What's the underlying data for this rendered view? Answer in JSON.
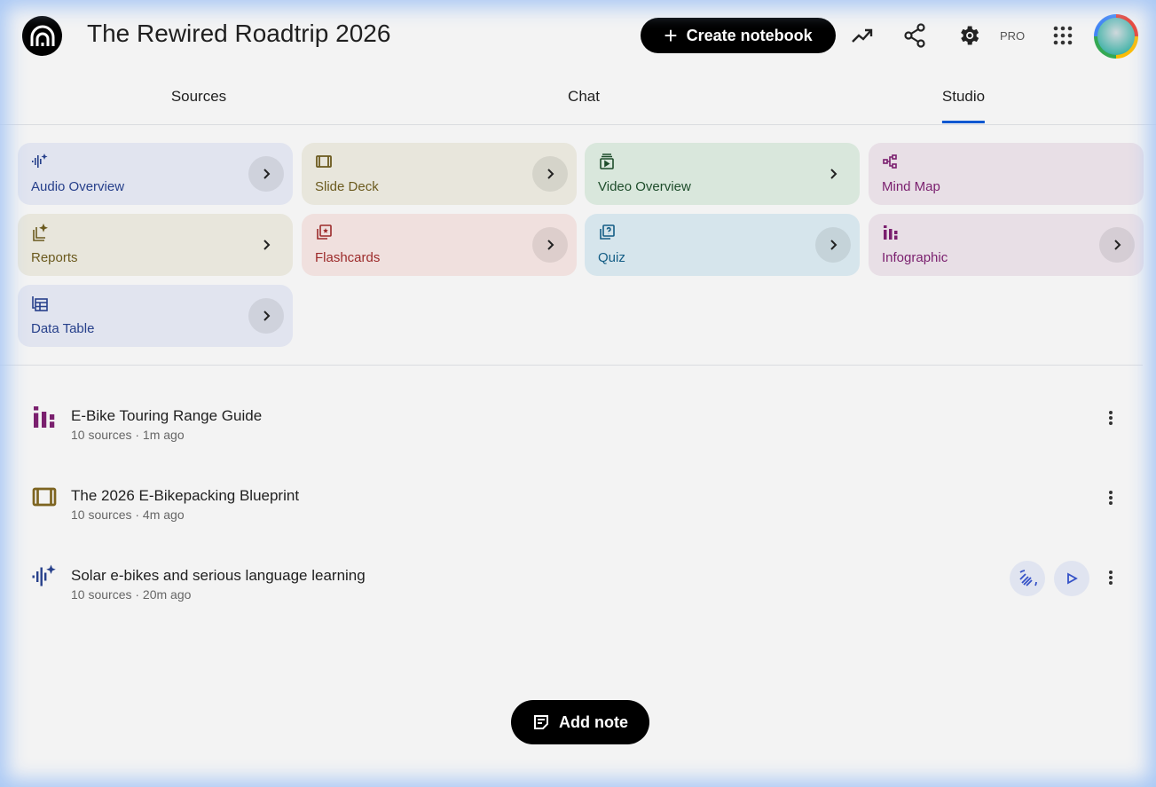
{
  "header": {
    "title": "The Rewired Roadtrip 2026",
    "create_label": "Create notebook",
    "pro_label": "PRO"
  },
  "tabs": [
    {
      "label": "Sources"
    },
    {
      "label": "Chat"
    },
    {
      "label": "Studio",
      "active": true
    }
  ],
  "studio_cards": [
    {
      "label": "Audio Overview",
      "icon": "audio-waveform-sparkle-icon",
      "bg": "#e1e4ef",
      "color": "#27408b"
    },
    {
      "label": "Slide Deck",
      "icon": "slides-icon",
      "bg": "#e8e6dc",
      "color": "#6b5a1e"
    },
    {
      "label": "Video Overview",
      "icon": "video-play-icon",
      "bg": "#d9e7dc",
      "color": "#1e4d2b"
    },
    {
      "label": "Mind Map",
      "icon": "mind-map-icon",
      "bg": "#e8dfe6",
      "color": "#7a1f6e"
    },
    {
      "label": "Reports",
      "icon": "reports-icon",
      "bg": "#e8e6dc",
      "color": "#6b5a1e"
    },
    {
      "label": "Flashcards",
      "icon": "flashcards-icon",
      "bg": "#f0e0de",
      "color": "#9c2a2a"
    },
    {
      "label": "Quiz",
      "icon": "quiz-icon",
      "bg": "#d6e5ec",
      "color": "#135d85"
    },
    {
      "label": "Infographic",
      "icon": "infographic-icon",
      "bg": "#e8dfe6",
      "color": "#7a1f6e"
    },
    {
      "label": "Data Table",
      "icon": "data-table-icon",
      "bg": "#e1e4ef",
      "color": "#27408b"
    }
  ],
  "notes": [
    {
      "title": "E-Bike Touring Range Guide",
      "meta": "10 sources · 1m ago",
      "icon": "infographic-icon",
      "color": "#7a1f6e"
    },
    {
      "title": "The 2026 E-Bikepacking Blueprint",
      "meta": "10 sources · 4m ago",
      "icon": "slides-icon",
      "color": "#7d6420"
    },
    {
      "title": "Solar e-bikes and serious language learning",
      "meta": "10 sources · 20m ago",
      "icon": "audio-waveform-sparkle-icon",
      "color": "#27408b"
    }
  ],
  "add_note_label": "Add note"
}
